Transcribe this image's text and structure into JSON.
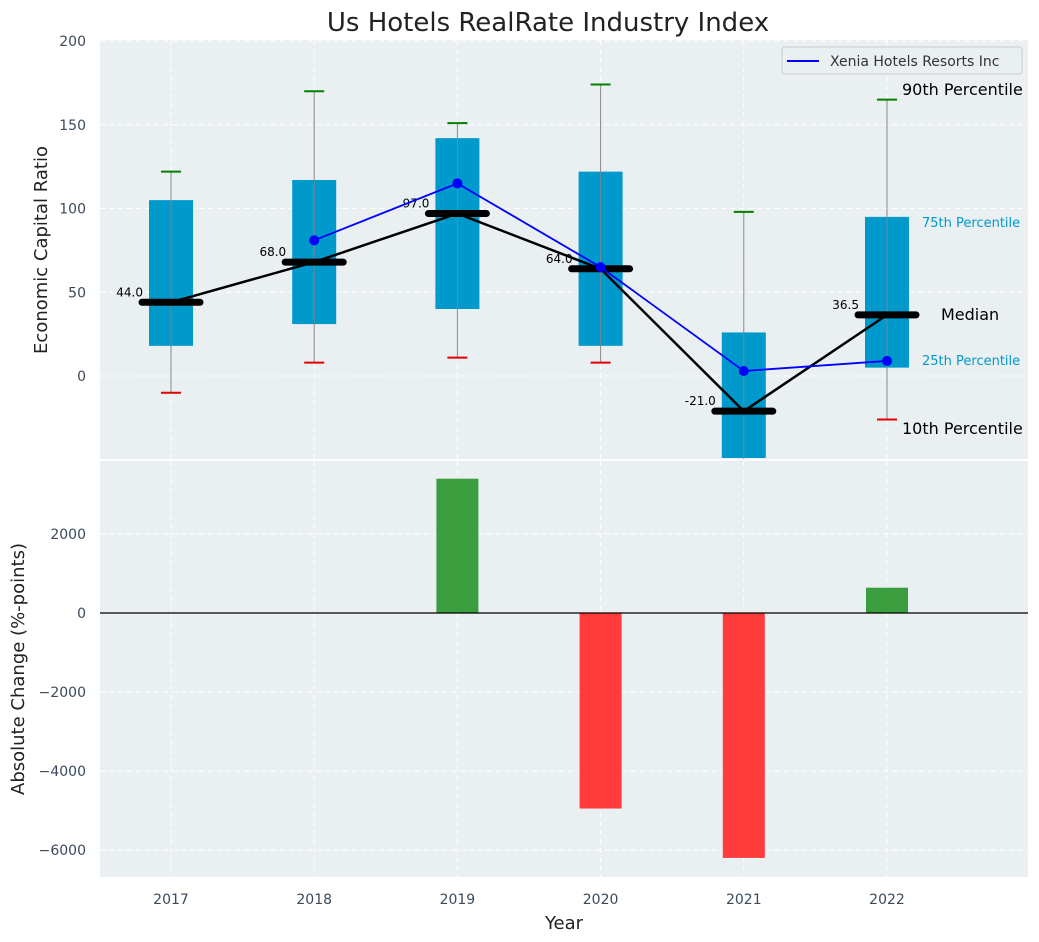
{
  "chart_data": [
    {
      "type": "box",
      "title": "Us Hotels RealRate Industry Index",
      "ylabel": "Economic Capital Ratio",
      "ylim": [
        -50,
        200
      ],
      "yticks": [
        0,
        50,
        100,
        150,
        200
      ],
      "categories": [
        "2017",
        "2018",
        "2019",
        "2020",
        "2021",
        "2022"
      ],
      "p10": [
        -10,
        8,
        11,
        8,
        null,
        -26
      ],
      "p25": [
        18,
        31,
        40,
        18,
        -50,
        5
      ],
      "median": [
        44.0,
        68.0,
        97.0,
        64.0,
        -21.0,
        36.5
      ],
      "p75": [
        105,
        117,
        142,
        122,
        26,
        95
      ],
      "p90": [
        122,
        170,
        151,
        174,
        98,
        165
      ],
      "median_labels": [
        "44.0",
        "68.0",
        "97.0",
        "64.0",
        "-21.0",
        "36.5"
      ],
      "company": {
        "name": "Xenia Hotels Resorts Inc",
        "values": [
          null,
          81,
          115,
          65,
          3,
          9
        ],
        "color": "#0000ff"
      },
      "annotations": {
        "p90": "90th Percentile",
        "p75": "75th Percentile",
        "median": "Median",
        "p25": "25th Percentile",
        "p10": "10th Percentile"
      },
      "legend_position": "top-right",
      "grid": true
    },
    {
      "type": "bar",
      "xlabel": "Year",
      "ylabel": "Absolute Change (%-points)",
      "ylim": [
        -6700,
        3400
      ],
      "yticks": [
        -6000,
        -4000,
        -2000,
        0,
        2000
      ],
      "categories": [
        "2017",
        "2018",
        "2019",
        "2020",
        "2021",
        "2022"
      ],
      "values": [
        0,
        0,
        3400,
        -4950,
        -6200,
        640
      ],
      "positive_color": "#3a9e3e",
      "negative_color": "#ff3b3b",
      "grid": true
    }
  ],
  "colors": {
    "box": "#0099cc",
    "whisker": "#888888",
    "p90_cap": "#008000",
    "p10_cap": "#e00000",
    "median_bar": "#000000",
    "panel_bg": "#eaeff1"
  }
}
